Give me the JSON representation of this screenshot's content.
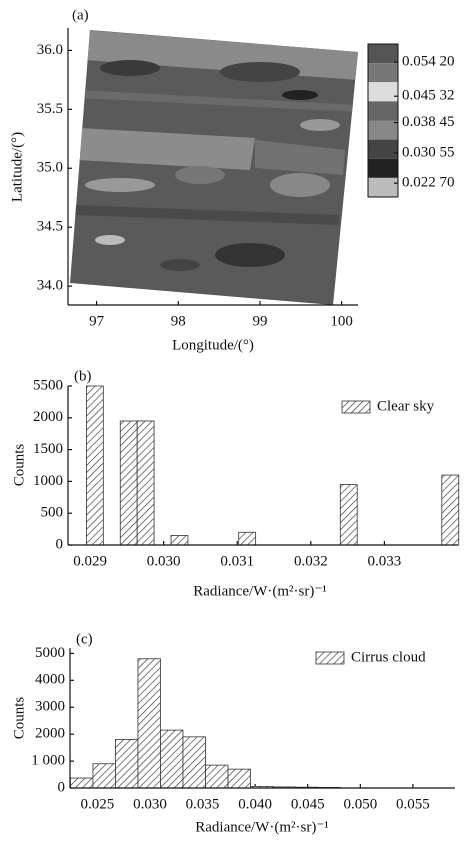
{
  "chart_data": [
    {
      "type": "map",
      "annotation": "(a)",
      "xlabel": "Longitude/(°)",
      "ylabel": "Latitude/(°)",
      "xlim": [
        96.65,
        100.2
      ],
      "xticks": [
        97,
        98,
        99,
        100
      ],
      "ylim": [
        33.84,
        36.19
      ],
      "yticks": [
        {
          "value": 34,
          "label": "34.0"
        },
        34.5,
        {
          "value": 35,
          "label": "35.0"
        },
        35.5,
        {
          "value": 36,
          "label": "36.0"
        }
      ],
      "colorbar": {
        "lim": [
          0.0191,
          0.0589
        ],
        "colors": [
          "#555555",
          "#777777",
          "#dddddd",
          "#666666",
          "#888888",
          "#444444",
          "#222222",
          "#bbbbbb"
        ],
        "ticks": [
          {
            "value": 0.0542,
            "label": "0.054 20"
          },
          {
            "value": 0.04532,
            "label": "0.045 32"
          },
          {
            "value": 0.03845,
            "label": "0.038 45"
          },
          {
            "value": 0.03055,
            "label": "0.030 55"
          },
          {
            "value": 0.0227,
            "label": "0.022 70"
          }
        ]
      }
    },
    {
      "type": "histogram",
      "annotation": "(b)",
      "xlabel": "Radiance/W·(m²·sr)⁻¹",
      "ylabel": "Counts",
      "bins": [
        0.02895,
        0.02918,
        0.02941,
        0.02964,
        0.02987,
        0.0301,
        0.03033,
        0.03056,
        0.03079,
        0.03102,
        0.03125,
        0.03148,
        0.03171,
        0.03194,
        0.03217,
        0.0324,
        0.03263,
        0.03286,
        0.03309,
        0.03332,
        0.03355,
        0.03378,
        0.03401
      ],
      "series": [
        {
          "name": "Clear sky",
          "color": "#333333",
          "values": [
            5500,
            0,
            1950,
            1950,
            0,
            150,
            0,
            0,
            0,
            200,
            0,
            0,
            0,
            0,
            0,
            950,
            0,
            0,
            0,
            0,
            0,
            1100
          ]
        }
      ],
      "xlim": [
        0.0287,
        0.034
      ],
      "xticks": [
        0.029,
        {
          "value": 0.03,
          "label": "0.030"
        },
        0.031,
        0.032,
        0.033
      ],
      "ylim": [
        0,
        5500
      ],
      "yticks": [
        0,
        500,
        1000,
        1500,
        2000,
        5500
      ],
      "axis_break": true,
      "legend": "upper right"
    },
    {
      "type": "histogram",
      "annotation": "(c)",
      "xlabel": "Radiance/W·(m²·sr)⁻¹",
      "ylabel": "Counts",
      "bins": [
        0.02244,
        0.02458,
        0.02672,
        0.02886,
        0.031,
        0.03314,
        0.03528,
        0.03742,
        0.03956,
        0.0417,
        0.04384,
        0.04598,
        0.04812
      ],
      "series": [
        {
          "name": "Cirrus cloud",
          "color": "#333333",
          "values": [
            370,
            900,
            1800,
            4800,
            2150,
            1900,
            850,
            700,
            60,
            40,
            30,
            20
          ]
        }
      ],
      "xlim": [
        0.0224,
        0.059
      ],
      "xticks": [
        0.025,
        {
          "value": 0.03,
          "label": "0.030"
        },
        0.035,
        {
          "value": 0.04,
          "label": "0.040"
        },
        0.045,
        {
          "value": 0.05,
          "label": "0.050"
        },
        0.055
      ],
      "ylim": [
        0,
        5200
      ],
      "yticks": [
        0,
        {
          "value": 1000,
          "label": "1 000"
        },
        2000,
        3000,
        4000,
        5000
      ],
      "legend": "upper right"
    }
  ]
}
